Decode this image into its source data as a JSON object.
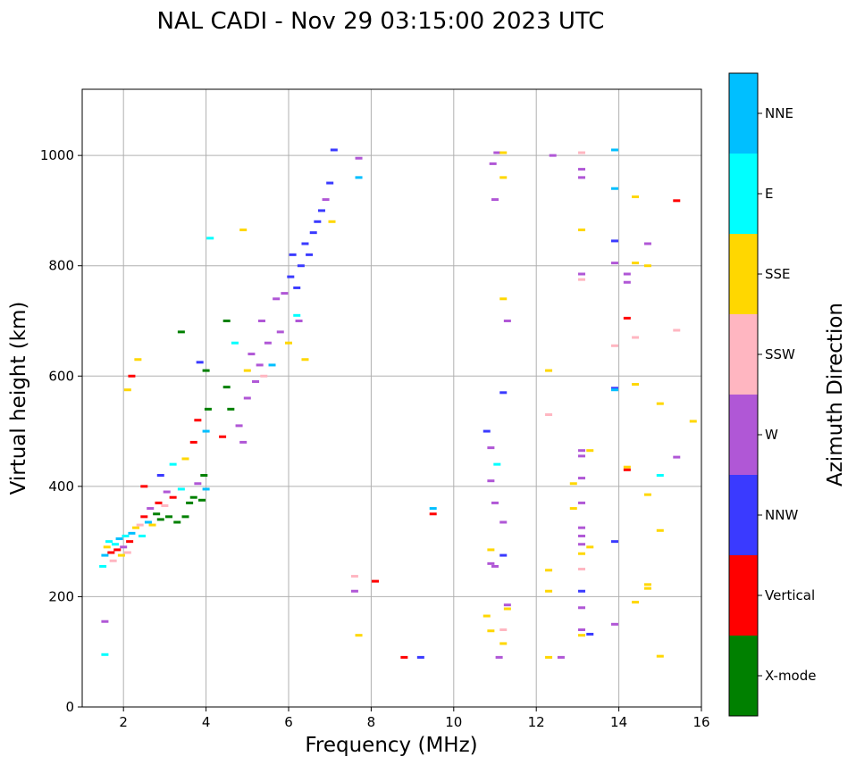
{
  "chart_data": {
    "type": "scatter",
    "title": "NAL CADI - Nov 29 03:15:00 2023 UTC",
    "xlabel": "Frequency (MHz)",
    "ylabel": "Virtual height (km)",
    "xlim": [
      1,
      16
    ],
    "ylim": [
      0,
      1120
    ],
    "xticks": [
      2,
      4,
      6,
      8,
      10,
      12,
      14,
      16
    ],
    "yticks": [
      0,
      200,
      400,
      600,
      800,
      1000
    ],
    "grid": true,
    "colorbar": {
      "label": "Azimuth Direction",
      "categories": [
        {
          "name": "X-mode",
          "color": "#008000"
        },
        {
          "name": "Vertical",
          "color": "#ff0000"
        },
        {
          "name": "NNW",
          "color": "#3a3aff"
        },
        {
          "name": "W",
          "color": "#b057d6"
        },
        {
          "name": "SSW",
          "color": "#ffb6c1"
        },
        {
          "name": "SSE",
          "color": "#ffd700"
        },
        {
          "name": "E",
          "color": "#00ffff"
        },
        {
          "name": "NNE",
          "color": "#00bfff"
        }
      ]
    },
    "points": [
      {
        "f": 1.5,
        "h": 255,
        "c": "E"
      },
      {
        "f": 1.55,
        "h": 275,
        "c": "NNE"
      },
      {
        "f": 1.6,
        "h": 290,
        "c": "SSE"
      },
      {
        "f": 1.65,
        "h": 300,
        "c": "E"
      },
      {
        "f": 1.7,
        "h": 280,
        "c": "Vertical"
      },
      {
        "f": 1.75,
        "h": 265,
        "c": "SSW"
      },
      {
        "f": 1.8,
        "h": 295,
        "c": "E"
      },
      {
        "f": 1.85,
        "h": 285,
        "c": "Vertical"
      },
      {
        "f": 1.9,
        "h": 305,
        "c": "NNE"
      },
      {
        "f": 1.95,
        "h": 275,
        "c": "SSE"
      },
      {
        "f": 2.0,
        "h": 290,
        "c": "W"
      },
      {
        "f": 2.05,
        "h": 310,
        "c": "E"
      },
      {
        "f": 2.1,
        "h": 280,
        "c": "SSW"
      },
      {
        "f": 2.15,
        "h": 300,
        "c": "Vertical"
      },
      {
        "f": 2.2,
        "h": 315,
        "c": "NNE"
      },
      {
        "f": 2.3,
        "h": 325,
        "c": "SSE"
      },
      {
        "f": 2.4,
        "h": 330,
        "c": "SSW"
      },
      {
        "f": 2.45,
        "h": 310,
        "c": "E"
      },
      {
        "f": 2.5,
        "h": 345,
        "c": "Vertical"
      },
      {
        "f": 2.6,
        "h": 335,
        "c": "NNE"
      },
      {
        "f": 2.65,
        "h": 360,
        "c": "W"
      },
      {
        "f": 2.7,
        "h": 330,
        "c": "SSE"
      },
      {
        "f": 2.8,
        "h": 350,
        "c": "X-mode"
      },
      {
        "f": 2.85,
        "h": 370,
        "c": "Vertical"
      },
      {
        "f": 2.9,
        "h": 340,
        "c": "X-mode"
      },
      {
        "f": 3.0,
        "h": 365,
        "c": "SSW"
      },
      {
        "f": 3.05,
        "h": 390,
        "c": "W"
      },
      {
        "f": 3.1,
        "h": 345,
        "c": "X-mode"
      },
      {
        "f": 3.2,
        "h": 380,
        "c": "Vertical"
      },
      {
        "f": 3.3,
        "h": 335,
        "c": "X-mode"
      },
      {
        "f": 3.4,
        "h": 395,
        "c": "E"
      },
      {
        "f": 3.5,
        "h": 345,
        "c": "X-mode"
      },
      {
        "f": 3.6,
        "h": 370,
        "c": "X-mode"
      },
      {
        "f": 3.7,
        "h": 380,
        "c": "X-mode"
      },
      {
        "f": 3.8,
        "h": 405,
        "c": "W"
      },
      {
        "f": 3.9,
        "h": 375,
        "c": "X-mode"
      },
      {
        "f": 4.0,
        "h": 395,
        "c": "NNE"
      },
      {
        "f": 2.2,
        "h": 600,
        "c": "Vertical"
      },
      {
        "f": 2.1,
        "h": 575,
        "c": "SSE"
      },
      {
        "f": 1.55,
        "h": 95,
        "c": "E"
      },
      {
        "f": 1.55,
        "h": 155,
        "c": "W"
      },
      {
        "f": 2.5,
        "h": 400,
        "c": "Vertical"
      },
      {
        "f": 2.9,
        "h": 420,
        "c": "NNW"
      },
      {
        "f": 3.2,
        "h": 440,
        "c": "E"
      },
      {
        "f": 3.5,
        "h": 450,
        "c": "SSE"
      },
      {
        "f": 3.7,
        "h": 480,
        "c": "Vertical"
      },
      {
        "f": 3.95,
        "h": 420,
        "c": "X-mode"
      },
      {
        "f": 4.0,
        "h": 500,
        "c": "NNE"
      },
      {
        "f": 4.05,
        "h": 540,
        "c": "X-mode"
      },
      {
        "f": 3.8,
        "h": 520,
        "c": "Vertical"
      },
      {
        "f": 4.0,
        "h": 610,
        "c": "X-mode"
      },
      {
        "f": 4.4,
        "h": 490,
        "c": "Vertical"
      },
      {
        "f": 4.6,
        "h": 540,
        "c": "X-mode"
      },
      {
        "f": 4.5,
        "h": 580,
        "c": "X-mode"
      },
      {
        "f": 4.5,
        "h": 700,
        "c": "X-mode"
      },
      {
        "f": 4.7,
        "h": 660,
        "c": "E"
      },
      {
        "f": 4.8,
        "h": 510,
        "c": "W"
      },
      {
        "f": 4.9,
        "h": 480,
        "c": "W"
      },
      {
        "f": 5.0,
        "h": 560,
        "c": "W"
      },
      {
        "f": 5.0,
        "h": 610,
        "c": "SSE"
      },
      {
        "f": 5.1,
        "h": 640,
        "c": "W"
      },
      {
        "f": 5.2,
        "h": 590,
        "c": "W"
      },
      {
        "f": 5.3,
        "h": 620,
        "c": "W"
      },
      {
        "f": 5.35,
        "h": 700,
        "c": "W"
      },
      {
        "f": 5.4,
        "h": 600,
        "c": "SSW"
      },
      {
        "f": 5.5,
        "h": 660,
        "c": "W"
      },
      {
        "f": 5.6,
        "h": 620,
        "c": "NNE"
      },
      {
        "f": 5.7,
        "h": 740,
        "c": "W"
      },
      {
        "f": 5.8,
        "h": 680,
        "c": "W"
      },
      {
        "f": 5.9,
        "h": 750,
        "c": "W"
      },
      {
        "f": 6.0,
        "h": 660,
        "c": "SSE"
      },
      {
        "f": 6.05,
        "h": 780,
        "c": "NNW"
      },
      {
        "f": 6.1,
        "h": 820,
        "c": "NNW"
      },
      {
        "f": 6.2,
        "h": 760,
        "c": "NNW"
      },
      {
        "f": 6.25,
        "h": 700,
        "c": "W"
      },
      {
        "f": 6.3,
        "h": 800,
        "c": "NNW"
      },
      {
        "f": 6.4,
        "h": 840,
        "c": "NNW"
      },
      {
        "f": 6.5,
        "h": 820,
        "c": "NNW"
      },
      {
        "f": 6.6,
        "h": 860,
        "c": "NNW"
      },
      {
        "f": 6.7,
        "h": 880,
        "c": "NNW"
      },
      {
        "f": 6.8,
        "h": 900,
        "c": "NNW"
      },
      {
        "f": 6.9,
        "h": 920,
        "c": "W"
      },
      {
        "f": 7.0,
        "h": 950,
        "c": "NNW"
      },
      {
        "f": 7.1,
        "h": 1010,
        "c": "NNW"
      },
      {
        "f": 7.05,
        "h": 880,
        "c": "SSE"
      },
      {
        "f": 6.2,
        "h": 710,
        "c": "E"
      },
      {
        "f": 6.4,
        "h": 630,
        "c": "SSE"
      },
      {
        "f": 7.7,
        "h": 960,
        "c": "NNE"
      },
      {
        "f": 7.7,
        "h": 995,
        "c": "W"
      },
      {
        "f": 4.9,
        "h": 865,
        "c": "SSE"
      },
      {
        "f": 4.1,
        "h": 850,
        "c": "E"
      },
      {
        "f": 3.4,
        "h": 680,
        "c": "X-mode"
      },
      {
        "f": 3.85,
        "h": 625,
        "c": "NNW"
      },
      {
        "f": 2.35,
        "h": 630,
        "c": "SSE"
      },
      {
        "f": 7.7,
        "h": 130,
        "c": "SSE"
      },
      {
        "f": 8.1,
        "h": 228,
        "c": "Vertical"
      },
      {
        "f": 7.6,
        "h": 210,
        "c": "W"
      },
      {
        "f": 7.6,
        "h": 237,
        "c": "SSW"
      },
      {
        "f": 8.8,
        "h": 90,
        "c": "Vertical"
      },
      {
        "f": 9.2,
        "h": 90,
        "c": "NNW"
      },
      {
        "f": 9.5,
        "h": 360,
        "c": "NNE"
      },
      {
        "f": 9.5,
        "h": 350,
        "c": "Vertical"
      },
      {
        "f": 10.8,
        "h": 500,
        "c": "NNW"
      },
      {
        "f": 10.9,
        "h": 470,
        "c": "W"
      },
      {
        "f": 11.05,
        "h": 440,
        "c": "E"
      },
      {
        "f": 10.9,
        "h": 410,
        "c": "W"
      },
      {
        "f": 11.0,
        "h": 370,
        "c": "W"
      },
      {
        "f": 11.2,
        "h": 335,
        "c": "W"
      },
      {
        "f": 10.9,
        "h": 285,
        "c": "SSE"
      },
      {
        "f": 11.2,
        "h": 275,
        "c": "NNW"
      },
      {
        "f": 10.9,
        "h": 260,
        "c": "W"
      },
      {
        "f": 11.0,
        "h": 255,
        "c": "W"
      },
      {
        "f": 10.8,
        "h": 165,
        "c": "SSE"
      },
      {
        "f": 10.9,
        "h": 138,
        "c": "SSE"
      },
      {
        "f": 11.2,
        "h": 140,
        "c": "SSW"
      },
      {
        "f": 11.2,
        "h": 115,
        "c": "SSE"
      },
      {
        "f": 11.1,
        "h": 90,
        "c": "W"
      },
      {
        "f": 11.3,
        "h": 185,
        "c": "W"
      },
      {
        "f": 11.3,
        "h": 178,
        "c": "SSE"
      },
      {
        "f": 11.2,
        "h": 570,
        "c": "NNW"
      },
      {
        "f": 11.2,
        "h": 740,
        "c": "SSE"
      },
      {
        "f": 11.3,
        "h": 700,
        "c": "W"
      },
      {
        "f": 11.0,
        "h": 920,
        "c": "W"
      },
      {
        "f": 11.2,
        "h": 960,
        "c": "SSE"
      },
      {
        "f": 10.95,
        "h": 985,
        "c": "W"
      },
      {
        "f": 11.05,
        "h": 1005,
        "c": "W"
      },
      {
        "f": 11.2,
        "h": 1005,
        "c": "SSE"
      },
      {
        "f": 12.3,
        "h": 610,
        "c": "SSE"
      },
      {
        "f": 12.3,
        "h": 530,
        "c": "SSW"
      },
      {
        "f": 12.3,
        "h": 248,
        "c": "SSE"
      },
      {
        "f": 12.3,
        "h": 210,
        "c": "SSE"
      },
      {
        "f": 12.3,
        "h": 90,
        "c": "SSE"
      },
      {
        "f": 12.6,
        "h": 90,
        "c": "W"
      },
      {
        "f": 12.4,
        "h": 1000,
        "c": "W"
      },
      {
        "f": 12.9,
        "h": 405,
        "c": "SSE"
      },
      {
        "f": 12.9,
        "h": 360,
        "c": "SSE"
      },
      {
        "f": 13.1,
        "h": 1005,
        "c": "SSW"
      },
      {
        "f": 13.1,
        "h": 975,
        "c": "W"
      },
      {
        "f": 13.1,
        "h": 960,
        "c": "W"
      },
      {
        "f": 13.1,
        "h": 865,
        "c": "SSE"
      },
      {
        "f": 13.1,
        "h": 785,
        "c": "W"
      },
      {
        "f": 13.1,
        "h": 775,
        "c": "SSW"
      },
      {
        "f": 13.1,
        "h": 465,
        "c": "W"
      },
      {
        "f": 13.1,
        "h": 455,
        "c": "W"
      },
      {
        "f": 13.1,
        "h": 415,
        "c": "W"
      },
      {
        "f": 13.1,
        "h": 370,
        "c": "W"
      },
      {
        "f": 13.1,
        "h": 325,
        "c": "W"
      },
      {
        "f": 13.1,
        "h": 310,
        "c": "W"
      },
      {
        "f": 13.1,
        "h": 295,
        "c": "W"
      },
      {
        "f": 13.1,
        "h": 278,
        "c": "SSE"
      },
      {
        "f": 13.1,
        "h": 250,
        "c": "SSW"
      },
      {
        "f": 13.1,
        "h": 210,
        "c": "NNW"
      },
      {
        "f": 13.1,
        "h": 180,
        "c": "W"
      },
      {
        "f": 13.1,
        "h": 140,
        "c": "W"
      },
      {
        "f": 13.1,
        "h": 130,
        "c": "SSE"
      },
      {
        "f": 13.3,
        "h": 465,
        "c": "SSE"
      },
      {
        "f": 13.3,
        "h": 290,
        "c": "SSE"
      },
      {
        "f": 13.3,
        "h": 132,
        "c": "NNW"
      },
      {
        "f": 13.9,
        "h": 1010,
        "c": "NNE"
      },
      {
        "f": 13.9,
        "h": 940,
        "c": "NNE"
      },
      {
        "f": 13.9,
        "h": 845,
        "c": "NNW"
      },
      {
        "f": 13.9,
        "h": 805,
        "c": "W"
      },
      {
        "f": 13.9,
        "h": 655,
        "c": "SSW"
      },
      {
        "f": 13.9,
        "h": 578,
        "c": "NNW"
      },
      {
        "f": 13.9,
        "h": 575,
        "c": "NNE"
      },
      {
        "f": 13.9,
        "h": 300,
        "c": "NNW"
      },
      {
        "f": 13.9,
        "h": 150,
        "c": "W"
      },
      {
        "f": 14.2,
        "h": 785,
        "c": "W"
      },
      {
        "f": 14.2,
        "h": 770,
        "c": "W"
      },
      {
        "f": 14.2,
        "h": 705,
        "c": "Vertical"
      },
      {
        "f": 14.2,
        "h": 435,
        "c": "SSE"
      },
      {
        "f": 14.2,
        "h": 430,
        "c": "Vertical"
      },
      {
        "f": 14.4,
        "h": 925,
        "c": "SSE"
      },
      {
        "f": 14.4,
        "h": 805,
        "c": "SSE"
      },
      {
        "f": 14.4,
        "h": 670,
        "c": "SSW"
      },
      {
        "f": 14.4,
        "h": 585,
        "c": "SSE"
      },
      {
        "f": 14.4,
        "h": 190,
        "c": "SSE"
      },
      {
        "f": 14.7,
        "h": 840,
        "c": "W"
      },
      {
        "f": 14.7,
        "h": 800,
        "c": "SSE"
      },
      {
        "f": 14.7,
        "h": 385,
        "c": "SSE"
      },
      {
        "f": 14.7,
        "h": 222,
        "c": "SSE"
      },
      {
        "f": 14.7,
        "h": 215,
        "c": "SSE"
      },
      {
        "f": 15.0,
        "h": 550,
        "c": "SSE"
      },
      {
        "f": 15.0,
        "h": 420,
        "c": "E"
      },
      {
        "f": 15.0,
        "h": 320,
        "c": "SSE"
      },
      {
        "f": 15.0,
        "h": 92,
        "c": "SSE"
      },
      {
        "f": 15.4,
        "h": 918,
        "c": "Vertical"
      },
      {
        "f": 15.4,
        "h": 683,
        "c": "SSW"
      },
      {
        "f": 15.4,
        "h": 453,
        "c": "W"
      },
      {
        "f": 15.8,
        "h": 518,
        "c": "SSE"
      }
    ]
  }
}
